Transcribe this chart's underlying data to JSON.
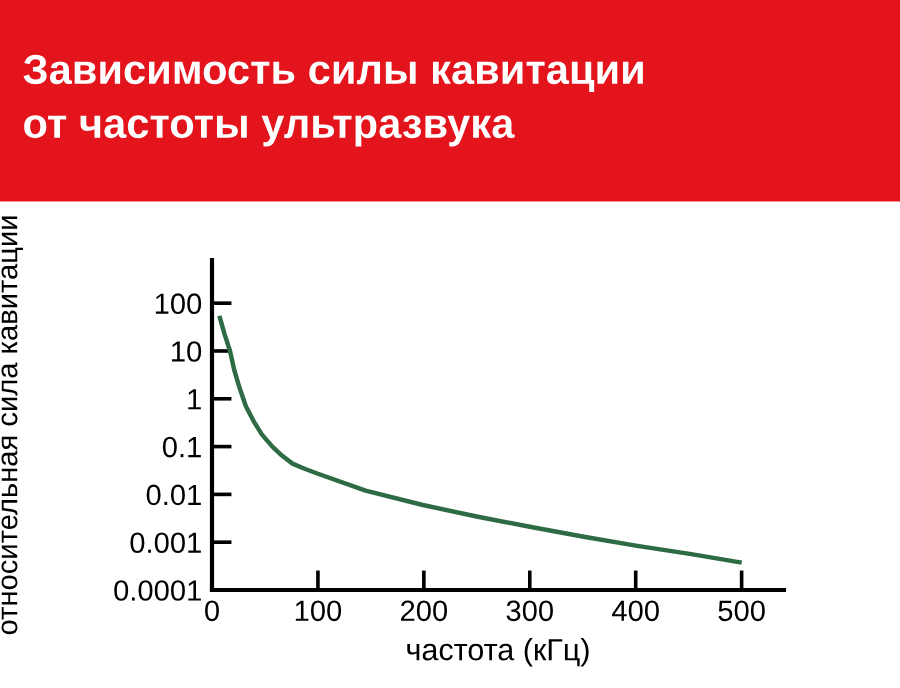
{
  "chart_data": {
    "type": "line",
    "title": "Зависимость силы кавитации\nот частоты ультразвука",
    "xlabel": "частота (кГц)",
    "ylabel": "относительная сила кавитации",
    "log": "y",
    "x": [
      7.5,
      12,
      17,
      21,
      26,
      32,
      39,
      47,
      57,
      66,
      76,
      88,
      100,
      145,
      199,
      251,
      300,
      351,
      400,
      451,
      498
    ],
    "series": [
      {
        "color": "#2e6b45",
        "values": [
          49,
          22,
          10,
          4,
          1.7,
          0.7,
          0.35,
          0.18,
          0.1,
          0.065,
          0.044,
          0.034,
          0.027,
          0.012,
          0.006,
          0.0034,
          0.0021,
          0.0013,
          0.00085,
          0.00057,
          0.00038
        ]
      }
    ],
    "xlim": [
      0,
      540
    ],
    "ylim": [
      0.0001,
      800
    ],
    "xticks": [
      0,
      100,
      200,
      300,
      400,
      500
    ],
    "yticks": [
      0.0001,
      0.001,
      0.01,
      0.1,
      1,
      10,
      100
    ],
    "grid": false,
    "marker": "none",
    "line_style": "solid"
  }
}
